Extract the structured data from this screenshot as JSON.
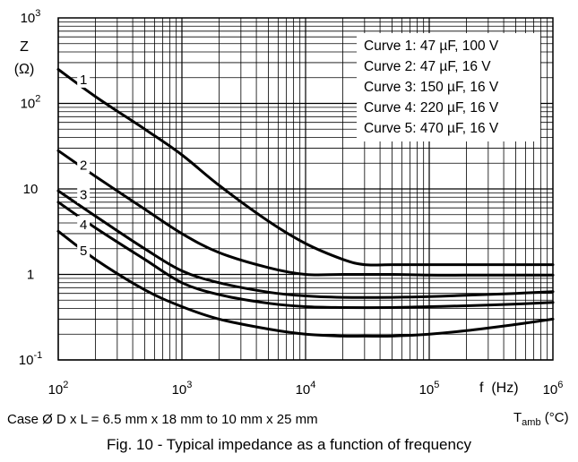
{
  "chart_data": {
    "type": "line",
    "title": "",
    "xscale": "log",
    "yscale": "log",
    "xlim": [
      100,
      1000000
    ],
    "ylim": [
      0.1,
      1000
    ],
    "grid": true,
    "legend_position": "top-right",
    "ylabel_symbol": "Z",
    "ylabel_unit": "(Ω)",
    "xlabel": "f  (Hz)",
    "x_ticks": [
      {
        "base": "10",
        "exp": "2"
      },
      {
        "base": "10",
        "exp": "3"
      },
      {
        "base": "10",
        "exp": "4"
      },
      {
        "base": "10",
        "exp": "5"
      },
      {
        "base": "10",
        "exp": "6"
      }
    ],
    "y_ticks": [
      {
        "value": 0.1,
        "base": "10",
        "exp": "-1"
      },
      {
        "value": 1,
        "base": "1",
        "exp": ""
      },
      {
        "value": 10,
        "base": "10",
        "exp": ""
      },
      {
        "value": 100,
        "base": "10",
        "exp": "2"
      },
      {
        "value": 1000,
        "base": "10",
        "exp": "3"
      }
    ],
    "legend": [
      "Curve 1: 47 µF, 100 V",
      "Curve 2: 47 µF, 16 V",
      "Curve 3: 150 µF, 16 V",
      "Curve 4: 220 µF, 16 V",
      "Curve 5: 470 µF, 16 V"
    ],
    "series": [
      {
        "name": "1",
        "label_at": [
          160,
          190
        ],
        "x": [
          100,
          200,
          500,
          1000,
          2000,
          5000,
          10000,
          20000,
          30000,
          50000,
          100000,
          1000000
        ],
        "y": [
          250,
          120,
          50,
          25,
          11,
          4.2,
          2.3,
          1.5,
          1.3,
          1.3,
          1.3,
          1.3
        ]
      },
      {
        "name": "2",
        "label_at": [
          160,
          19
        ],
        "x": [
          100,
          200,
          500,
          1000,
          2000,
          5000,
          10000,
          20000,
          50000,
          100000,
          200000,
          500000,
          1000000
        ],
        "y": [
          28,
          14,
          5.8,
          3.0,
          1.8,
          1.2,
          1.0,
          1.0,
          1.0,
          0.98,
          0.98,
          0.98,
          0.98
        ]
      },
      {
        "name": "3",
        "label_at": [
          160,
          8.5
        ],
        "x": [
          100,
          200,
          500,
          1000,
          2000,
          5000,
          10000,
          20000,
          50000,
          100000,
          200000,
          500000,
          1000000
        ],
        "y": [
          9.5,
          4.8,
          2.0,
          1.1,
          0.8,
          0.62,
          0.56,
          0.54,
          0.54,
          0.55,
          0.57,
          0.6,
          0.63
        ]
      },
      {
        "name": "4",
        "label_at": [
          160,
          3.8
        ],
        "x": [
          100,
          200,
          500,
          1000,
          2000,
          5000,
          10000,
          20000,
          50000,
          100000,
          200000,
          500000,
          1000000
        ],
        "y": [
          7.0,
          3.5,
          1.5,
          0.8,
          0.58,
          0.46,
          0.42,
          0.41,
          0.41,
          0.42,
          0.43,
          0.45,
          0.47
        ]
      },
      {
        "name": "5",
        "label_at": [
          160,
          1.9
        ],
        "x": [
          100,
          200,
          500,
          1000,
          2000,
          5000,
          10000,
          20000,
          30000,
          50000,
          100000,
          200000,
          500000,
          1000000
        ],
        "y": [
          3.2,
          1.5,
          0.66,
          0.42,
          0.3,
          0.23,
          0.2,
          0.19,
          0.19,
          0.19,
          0.2,
          0.22,
          0.26,
          0.3
        ]
      }
    ]
  },
  "notes": {
    "case": "Case Ø D x L = 6.5 mm x 18 mm to 10 mm x 25 mm",
    "tamb_main": "T",
    "tamb_sub": "amb",
    "tamb_unit": " (°C)"
  },
  "caption": "Fig. 10 - Typical impedance as a function of frequency"
}
